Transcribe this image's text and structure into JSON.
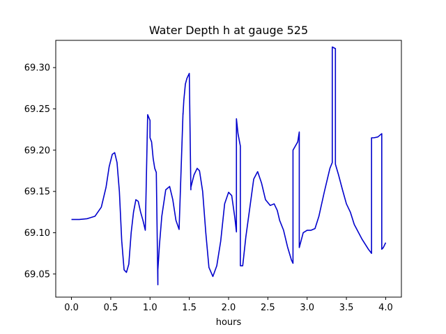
{
  "chart_data": {
    "type": "line",
    "title": "Water Depth h at gauge 525",
    "xlabel": "hours",
    "ylabel": "",
    "xlim": [
      -0.2,
      4.2
    ],
    "ylim": [
      69.022,
      69.333
    ],
    "grid": false,
    "line_color": "#0000cc",
    "x_ticks": [
      0.0,
      0.5,
      1.0,
      1.5,
      2.0,
      2.5,
      3.0,
      3.5,
      4.0
    ],
    "x_tick_labels": [
      "0.0",
      "0.5",
      "1.0",
      "1.5",
      "2.0",
      "2.5",
      "3.0",
      "3.5",
      "4.0"
    ],
    "y_ticks": [
      69.05,
      69.1,
      69.15,
      69.2,
      69.25,
      69.3
    ],
    "y_tick_labels": [
      "69.05",
      "69.10",
      "69.15",
      "69.20",
      "69.25",
      "69.30"
    ],
    "series": [
      {
        "x": [
          0.0,
          0.1,
          0.2,
          0.3,
          0.38,
          0.44,
          0.48,
          0.52,
          0.55,
          0.58,
          0.61,
          0.64,
          0.67,
          0.7,
          0.73,
          0.76,
          0.79,
          0.82,
          0.85,
          0.88,
          0.91,
          0.94,
          0.97,
          1.0,
          1.0,
          1.02,
          1.04,
          1.06,
          1.08,
          1.1,
          1.1,
          1.12,
          1.15,
          1.2,
          1.25,
          1.29,
          1.33,
          1.37,
          1.42,
          1.42,
          1.43,
          1.45,
          1.47,
          1.5,
          1.52,
          1.52,
          1.56,
          1.6,
          1.63,
          1.67,
          1.71,
          1.75,
          1.8,
          1.85,
          1.9,
          1.95,
          2.0,
          2.04,
          2.08,
          2.1,
          2.1,
          2.12,
          2.15,
          2.15,
          2.18,
          2.22,
          2.27,
          2.32,
          2.37,
          2.42,
          2.47,
          2.53,
          2.58,
          2.62,
          2.65,
          2.7,
          2.75,
          2.8,
          2.82,
          2.82,
          2.85,
          2.88,
          2.9,
          2.9,
          2.95,
          3.0,
          3.05,
          3.1,
          3.15,
          3.22,
          3.29,
          3.32,
          3.32,
          3.36,
          3.36,
          3.4,
          3.45,
          3.5,
          3.55,
          3.6,
          3.7,
          3.78,
          3.82,
          3.82,
          3.85,
          3.9,
          3.95,
          3.95,
          3.97,
          4.0
        ],
        "y": [
          69.116,
          69.116,
          69.117,
          69.12,
          69.131,
          69.155,
          69.18,
          69.195,
          69.197,
          69.185,
          69.15,
          69.09,
          69.055,
          69.052,
          69.062,
          69.1,
          69.125,
          69.14,
          69.138,
          69.125,
          69.115,
          69.103,
          69.243,
          69.236,
          69.215,
          69.21,
          69.19,
          69.178,
          69.173,
          69.037,
          69.055,
          69.085,
          69.12,
          69.152,
          69.156,
          69.14,
          69.115,
          69.104,
          69.245,
          69.243,
          69.26,
          69.28,
          69.287,
          69.293,
          69.152,
          69.155,
          69.17,
          69.178,
          69.175,
          69.15,
          69.1,
          69.058,
          69.047,
          69.06,
          69.09,
          69.135,
          69.149,
          69.145,
          69.118,
          69.101,
          69.238,
          69.22,
          69.205,
          69.06,
          69.06,
          69.095,
          69.13,
          69.165,
          69.174,
          69.16,
          69.14,
          69.133,
          69.135,
          69.127,
          69.115,
          69.103,
          69.083,
          69.067,
          69.063,
          69.2,
          69.205,
          69.21,
          69.222,
          69.082,
          69.1,
          69.103,
          69.103,
          69.105,
          69.12,
          69.15,
          69.178,
          69.185,
          69.325,
          69.323,
          69.183,
          69.17,
          69.152,
          69.135,
          69.125,
          69.11,
          69.092,
          69.08,
          69.075,
          69.215,
          69.215,
          69.216,
          69.22,
          69.08,
          69.082,
          69.088
        ]
      }
    ]
  }
}
